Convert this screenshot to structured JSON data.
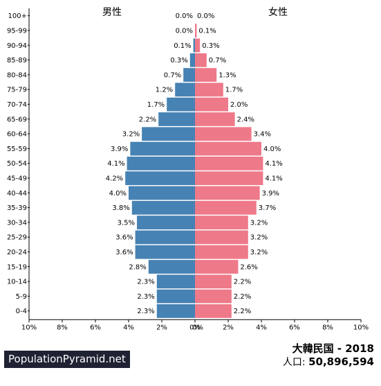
{
  "chart_data": {
    "type": "bar",
    "orientation": "horizontal",
    "title_left": "男性",
    "title_right": "女性",
    "categories": [
      "100+",
      "95-99",
      "90-94",
      "85-89",
      "80-84",
      "75-79",
      "70-74",
      "65-69",
      "60-64",
      "55-59",
      "50-54",
      "45-49",
      "40-44",
      "35-39",
      "30-34",
      "25-29",
      "20-24",
      "15-19",
      "10-14",
      "5-9",
      "0-4"
    ],
    "series": [
      {
        "name": "男性",
        "color": "#4682b4",
        "values": [
          0.0,
          0.0,
          0.1,
          0.3,
          0.7,
          1.2,
          1.7,
          2.2,
          3.2,
          3.9,
          4.1,
          4.2,
          4.0,
          3.8,
          3.5,
          3.6,
          3.6,
          2.8,
          2.3,
          2.3,
          2.3
        ]
      },
      {
        "name": "女性",
        "color": "#ee7989",
        "values": [
          0.0,
          0.1,
          0.3,
          0.7,
          1.3,
          1.7,
          2.0,
          2.4,
          3.4,
          4.0,
          4.1,
          4.1,
          3.9,
          3.7,
          3.2,
          3.2,
          3.2,
          2.6,
          2.2,
          2.2,
          2.2
        ]
      }
    ],
    "value_labels_left": [
      "0.0%",
      "0.0%",
      "0.1%",
      "0.3%",
      "0.7%",
      "1.2%",
      "1.7%",
      "2.2%",
      "3.2%",
      "3.9%",
      "4.1%",
      "4.2%",
      "4.0%",
      "3.8%",
      "3.5%",
      "3.6%",
      "3.6%",
      "2.8%",
      "2.3%",
      "2.3%",
      "2.3%"
    ],
    "value_labels_right": [
      "0.0%",
      "0.1%",
      "0.3%",
      "0.7%",
      "1.3%",
      "1.7%",
      "2.0%",
      "2.4%",
      "3.4%",
      "4.0%",
      "4.1%",
      "4.1%",
      "3.9%",
      "3.7%",
      "3.2%",
      "3.2%",
      "3.2%",
      "2.6%",
      "2.2%",
      "2.2%",
      "2.2%"
    ],
    "x_ticks_left": [
      "10%",
      "8%",
      "6%",
      "4%",
      "2%",
      "0%"
    ],
    "x_ticks_right": [
      "0%",
      "2%",
      "4%",
      "6%",
      "8%",
      "10%"
    ],
    "xlim": [
      0,
      10
    ]
  },
  "footer": {
    "title": "大韓民国 - 2018",
    "population_label": "人口:",
    "population_value": "50,896,594",
    "brand": "PopulationPyramid.net"
  }
}
